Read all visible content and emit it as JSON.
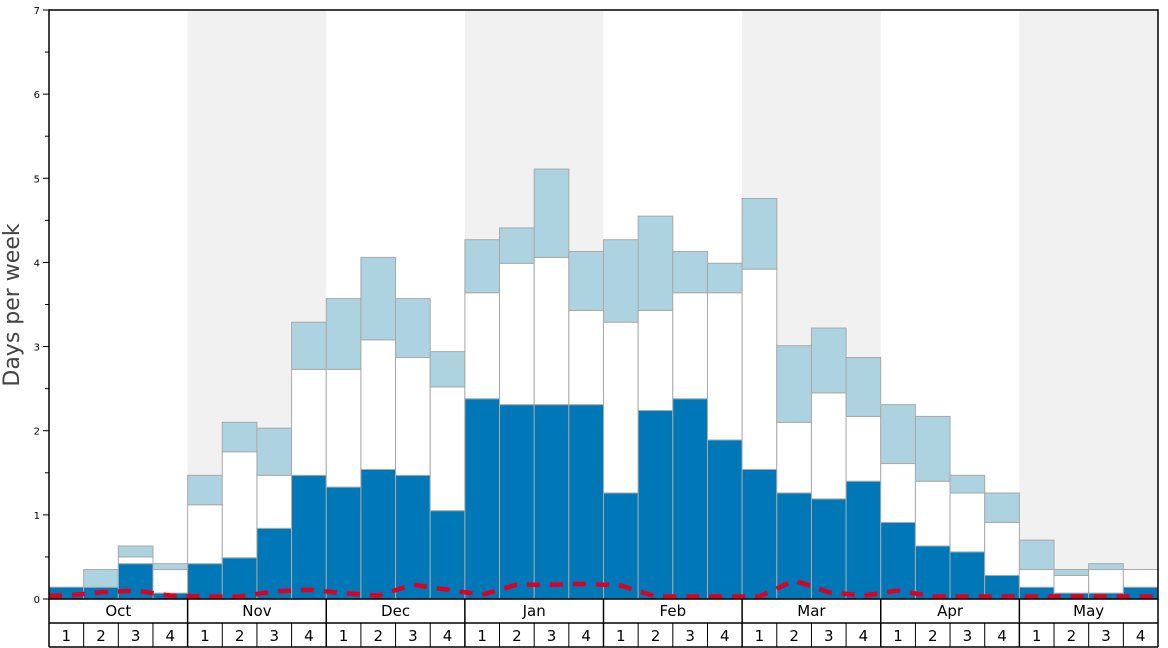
{
  "chart_data": {
    "type": "bar",
    "stacked": true,
    "ylabel": "Days per week",
    "ylim": [
      0,
      7
    ],
    "y_ticks": [
      "0",
      "1",
      "2",
      "3",
      "4",
      "5",
      "6",
      "7"
    ],
    "months": [
      "Oct",
      "Nov",
      "Dec",
      "Jan",
      "Feb",
      "Mar",
      "Apr",
      "May"
    ],
    "weeks": [
      "1",
      "2",
      "3",
      "4"
    ],
    "categories": [
      "Oct 1",
      "Oct 2",
      "Oct 3",
      "Oct 4",
      "Nov 1",
      "Nov 2",
      "Nov 3",
      "Nov 4",
      "Dec 1",
      "Dec 2",
      "Dec 3",
      "Dec 4",
      "Jan 1",
      "Jan 2",
      "Jan 3",
      "Jan 4",
      "Feb 1",
      "Feb 2",
      "Feb 3",
      "Feb 4",
      "Mar 1",
      "Mar 2",
      "Mar 3",
      "Mar 4",
      "Apr 1",
      "Apr 2",
      "Apr 3",
      "Apr 4",
      "May 1",
      "May 2",
      "May 3",
      "May 4"
    ],
    "series": [
      {
        "color": "#0077b6",
        "values": [
          0.14,
          0.14,
          0.42,
          0.07,
          0.42,
          0.49,
          0.84,
          1.47,
          1.33,
          1.54,
          1.47,
          1.05,
          2.38,
          2.31,
          2.31,
          2.31,
          1.26,
          2.24,
          2.38,
          1.89,
          1.54,
          1.26,
          1.19,
          1.4,
          0.91,
          0.63,
          0.56,
          0.28,
          0.14,
          0.07,
          0.07,
          0.14
        ]
      },
      {
        "color": "#ffffff",
        "values": [
          0.0,
          0.0,
          0.08,
          0.28,
          0.7,
          1.26,
          0.63,
          1.26,
          1.4,
          1.54,
          1.4,
          1.47,
          1.26,
          1.68,
          1.75,
          1.12,
          2.03,
          1.19,
          1.26,
          1.75,
          2.38,
          0.84,
          1.26,
          0.77,
          0.7,
          0.77,
          0.7,
          0.63,
          0.21,
          0.21,
          0.28,
          0.21
        ]
      },
      {
        "color": "#add3e0",
        "values": [
          0.0,
          0.21,
          0.13,
          0.07,
          0.35,
          0.35,
          0.56,
          0.56,
          0.84,
          0.98,
          0.7,
          0.42,
          0.63,
          0.42,
          1.05,
          0.7,
          0.98,
          1.12,
          0.49,
          0.35,
          0.84,
          0.91,
          0.77,
          0.7,
          0.7,
          0.77,
          0.21,
          0.35,
          0.35,
          0.07,
          0.07,
          0.0
        ]
      }
    ],
    "line_series": {
      "color": "#dd0022",
      "style": "dashed",
      "values": [
        0.04,
        0.08,
        0.1,
        0.04,
        0.03,
        0.03,
        0.09,
        0.11,
        0.07,
        0.04,
        0.17,
        0.11,
        0.05,
        0.17,
        0.17,
        0.18,
        0.16,
        0.03,
        0.03,
        0.03,
        0.03,
        0.22,
        0.08,
        0.04,
        0.1,
        0.03,
        0.03,
        0.03,
        0.03,
        0.03,
        0.03,
        0.03
      ]
    },
    "band_color": "#f1f1f1",
    "shaded_months": [
      "Nov",
      "Jan",
      "Mar",
      "May"
    ],
    "grid": false,
    "legend": "none"
  }
}
